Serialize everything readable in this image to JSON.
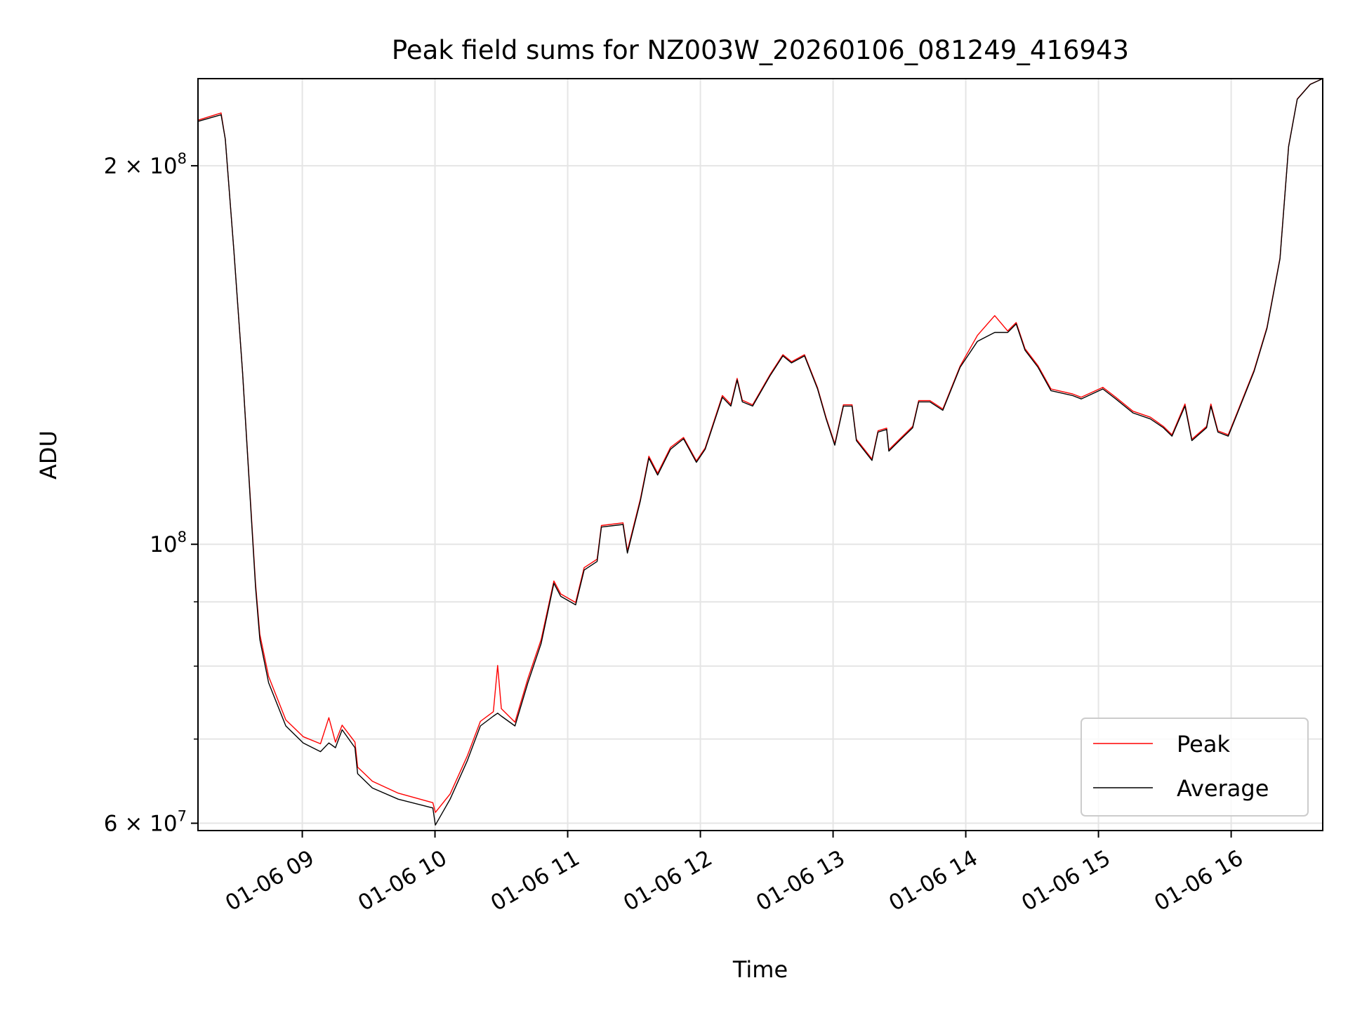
{
  "chart_data": {
    "type": "line",
    "title": "Peak field sums for NZ003W_20260106_081249_416943",
    "xlabel": "Time",
    "ylabel": "ADU",
    "yscale": "log",
    "x_units": "hours since 2026-01-06 00:00",
    "y_units": "1e6 ADU",
    "xlim": [
      8.214,
      16.69
    ],
    "ylim": [
      59.2,
      234.6
    ],
    "grid": true,
    "legend_position": "lower-right",
    "x_ticks": [
      {
        "value": 9,
        "label": "01-06 09"
      },
      {
        "value": 10,
        "label": "01-06 10"
      },
      {
        "value": 11,
        "label": "01-06 11"
      },
      {
        "value": 12,
        "label": "01-06 12"
      },
      {
        "value": 13,
        "label": "01-06 13"
      },
      {
        "value": 14,
        "label": "01-06 14"
      },
      {
        "value": 15,
        "label": "01-06 15"
      },
      {
        "value": 16,
        "label": "01-06 16"
      }
    ],
    "y_ticks_major": [
      {
        "value": 200,
        "base": "2 × 10",
        "exp": "8"
      },
      {
        "value": 100,
        "base": "10",
        "exp": "8"
      },
      {
        "value": 60,
        "base": "6 × 10",
        "exp": "7"
      }
    ],
    "y_ticks_minor": [
      70,
      80,
      90
    ],
    "x": [
      8.218,
      8.388,
      8.42,
      8.485,
      8.55,
      8.616,
      8.648,
      8.68,
      8.746,
      8.876,
      9.007,
      9.137,
      9.2,
      9.25,
      9.3,
      9.397,
      9.417,
      9.528,
      9.723,
      9.984,
      10.003,
      10.114,
      10.244,
      10.342,
      10.44,
      10.472,
      10.5,
      10.603,
      10.7,
      10.8,
      10.896,
      10.948,
      11.06,
      11.124,
      11.222,
      11.254,
      11.417,
      11.45,
      11.547,
      11.612,
      11.678,
      11.775,
      11.873,
      11.97,
      12.036,
      12.166,
      12.23,
      12.277,
      12.316,
      12.394,
      12.524,
      12.622,
      12.687,
      12.785,
      12.883,
      12.948,
      13.013,
      13.078,
      13.143,
      13.176,
      13.293,
      13.339,
      13.404,
      13.42,
      13.5,
      13.6,
      13.645,
      13.73,
      13.827,
      13.958,
      14.088,
      14.218,
      14.316,
      14.38,
      14.446,
      14.544,
      14.642,
      14.805,
      14.87,
      15.033,
      15.13,
      15.26,
      15.391,
      15.489,
      15.554,
      15.652,
      15.704,
      15.815,
      15.847,
      15.9,
      15.978,
      16.043,
      16.173,
      16.27,
      16.368,
      16.433,
      16.498,
      16.596,
      16.69
    ],
    "series": [
      {
        "name": "Peak",
        "color": "#ff0000",
        "values": [
          217.5,
          220.3,
          210,
          171,
          137,
          105.5,
          93,
          84.8,
          78.5,
          72.5,
          70.3,
          69.4,
          72.8,
          69.6,
          71.8,
          69.6,
          66.5,
          64.8,
          63.4,
          62.3,
          61.2,
          63.3,
          67.9,
          72.3,
          73.6,
          80.1,
          74,
          72.2,
          78.2,
          84,
          93.5,
          91.3,
          89.9,
          95.8,
          97.3,
          103.5,
          104,
          98.8,
          108.6,
          117.5,
          113.9,
          119.4,
          121.6,
          116.5,
          119.3,
          131.3,
          129.2,
          135.5,
          130.2,
          129.1,
          136.4,
          141.5,
          139.7,
          141.5,
          133.2,
          126.1,
          120.2,
          129.1,
          129.1,
          121.2,
          116.9,
          123.1,
          123.7,
          118.9,
          121.2,
          124.1,
          130.1,
          130.1,
          128.1,
          138.6,
          146.6,
          152,
          147.8,
          150.1,
          143.1,
          138.7,
          132.9,
          131.7,
          130.9,
          133.3,
          130.9,
          127.6,
          126.2,
          124.1,
          122.2,
          129.3,
          121.2,
          124.1,
          129.3,
          123.1,
          122.2,
          127.1,
          137.6,
          148.8,
          168.9,
          207.3,
          226,
          232.2,
          234.6
        ]
      },
      {
        "name": "Average",
        "color": "#000000",
        "values": [
          217,
          219.6,
          210,
          171,
          137,
          105,
          92.4,
          84,
          77.6,
          71.7,
          69.5,
          68.4,
          69.5,
          68.9,
          71.2,
          68.9,
          65.7,
          64,
          62.7,
          61.7,
          59.8,
          62.7,
          67.3,
          71.7,
          73,
          73.4,
          73,
          71.7,
          77.6,
          83.4,
          93.1,
          90.9,
          89.5,
          95.4,
          96.9,
          103.2,
          103.7,
          98.4,
          108.2,
          117.1,
          113.5,
          119,
          121.3,
          116.2,
          119,
          130.9,
          128.8,
          135.1,
          129.8,
          128.8,
          136.1,
          141.2,
          139.4,
          141.2,
          132.9,
          125.8,
          119.9,
          128.8,
          128.8,
          120.9,
          116.6,
          122.8,
          123.4,
          118.6,
          120.9,
          123.8,
          129.8,
          129.8,
          127.8,
          138.3,
          145,
          147.4,
          147.4,
          149.7,
          142.7,
          138.3,
          132.5,
          131.3,
          130.5,
          132.9,
          130.5,
          127.2,
          125.8,
          123.8,
          121.9,
          128.8,
          120.9,
          123.8,
          128.8,
          122.8,
          121.9,
          126.8,
          137.3,
          148.5,
          168.6,
          207.1,
          225.9,
          232.1,
          234.6
        ]
      }
    ]
  }
}
